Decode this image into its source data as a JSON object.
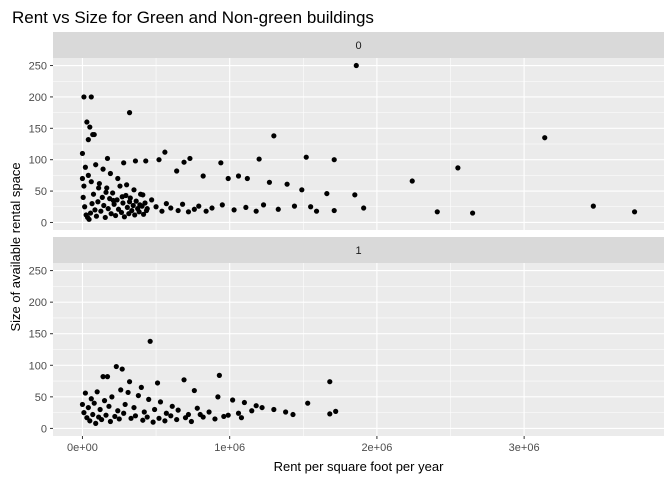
{
  "chart_data": {
    "type": "scatter",
    "title": "Rent vs Size for Green and Non-green buildings",
    "xlabel": "Rent per square foot per year",
    "ylabel": "Size of available rental space",
    "xlim": [
      -200000,
      3950000
    ],
    "ylim": [
      -12,
      262
    ],
    "x_ticks": [
      0,
      1000000,
      2000000,
      3000000
    ],
    "x_tick_labels": [
      "0e+00",
      "1e+06",
      "2e+06",
      "3e+06"
    ],
    "y_ticks": [
      0,
      50,
      100,
      150,
      200,
      250
    ],
    "y_tick_labels": [
      "0",
      "50",
      "100",
      "150",
      "200",
      "250"
    ],
    "grid": true,
    "legend": "none",
    "point_color": "#000000",
    "panel_background": "#ebebeb",
    "strip_background": "#d9d9d9",
    "facets": [
      {
        "label": "0",
        "points": [
          [
            1860000,
            250
          ],
          [
            10000,
            200
          ],
          [
            60000,
            200
          ],
          [
            320000,
            175
          ],
          [
            30000,
            160
          ],
          [
            50000,
            152
          ],
          [
            80000,
            140
          ],
          [
            40000,
            132
          ],
          [
            70000,
            140
          ],
          [
            3140000,
            135
          ],
          [
            1300000,
            138
          ],
          [
            0,
            110
          ],
          [
            560000,
            112
          ],
          [
            170000,
            102
          ],
          [
            430000,
            98
          ],
          [
            520000,
            100
          ],
          [
            690000,
            96
          ],
          [
            730000,
            102
          ],
          [
            940000,
            95
          ],
          [
            1200000,
            101
          ],
          [
            1520000,
            104
          ],
          [
            1710000,
            100
          ],
          [
            280000,
            95
          ],
          [
            360000,
            98
          ],
          [
            640000,
            82
          ],
          [
            820000,
            74
          ],
          [
            990000,
            70
          ],
          [
            1060000,
            74
          ],
          [
            1120000,
            70
          ],
          [
            1270000,
            64
          ],
          [
            1390000,
            61
          ],
          [
            1490000,
            52
          ],
          [
            1660000,
            46
          ],
          [
            2240000,
            66
          ],
          [
            2550000,
            87
          ],
          [
            1850000,
            44
          ],
          [
            1550000,
            25
          ],
          [
            1710000,
            19
          ],
          [
            1590000,
            18
          ],
          [
            1910000,
            23
          ],
          [
            2410000,
            17
          ],
          [
            2650000,
            15
          ],
          [
            3470000,
            26
          ],
          [
            3750000,
            17
          ],
          [
            1440000,
            26
          ],
          [
            1330000,
            21
          ],
          [
            1230000,
            28
          ],
          [
            1180000,
            18
          ],
          [
            1110000,
            24
          ],
          [
            1030000,
            20
          ],
          [
            950000,
            28
          ],
          [
            880000,
            23
          ],
          [
            840000,
            18
          ],
          [
            790000,
            26
          ],
          [
            760000,
            21
          ],
          [
            720000,
            17
          ],
          [
            680000,
            29
          ],
          [
            650000,
            19
          ],
          [
            600000,
            23
          ],
          [
            570000,
            30
          ],
          [
            540000,
            18
          ],
          [
            500000,
            25
          ],
          [
            470000,
            36
          ],
          [
            440000,
            22
          ],
          [
            410000,
            44
          ],
          [
            390000,
            28
          ],
          [
            350000,
            52
          ],
          [
            320000,
            33
          ],
          [
            300000,
            60
          ],
          [
            270000,
            41
          ],
          [
            240000,
            70
          ],
          [
            210000,
            35
          ],
          [
            190000,
            78
          ],
          [
            160000,
            48
          ],
          [
            140000,
            85
          ],
          [
            110000,
            55
          ],
          [
            90000,
            92
          ],
          [
            60000,
            65
          ],
          [
            40000,
            75
          ],
          [
            20000,
            88
          ],
          [
            10000,
            58
          ],
          [
            0,
            70
          ],
          [
            5000,
            40
          ],
          [
            15000,
            25
          ],
          [
            25000,
            12
          ],
          [
            35000,
            8
          ],
          [
            45000,
            5
          ],
          [
            55000,
            15
          ],
          [
            65000,
            30
          ],
          [
            75000,
            45
          ],
          [
            85000,
            20
          ],
          [
            95000,
            10
          ],
          [
            105000,
            33
          ],
          [
            115000,
            62
          ],
          [
            125000,
            18
          ],
          [
            135000,
            40
          ],
          [
            145000,
            27
          ],
          [
            155000,
            8
          ],
          [
            165000,
            55
          ],
          [
            175000,
            22
          ],
          [
            185000,
            38
          ],
          [
            195000,
            14
          ],
          [
            205000,
            47
          ],
          [
            215000,
            29
          ],
          [
            225000,
            11
          ],
          [
            235000,
            36
          ],
          [
            245000,
            21
          ],
          [
            255000,
            58
          ],
          [
            265000,
            16
          ],
          [
            275000,
            31
          ],
          [
            285000,
            9
          ],
          [
            295000,
            43
          ],
          [
            305000,
            24
          ],
          [
            315000,
            14
          ],
          [
            325000,
            39
          ],
          [
            335000,
            19
          ],
          [
            345000,
            27
          ],
          [
            355000,
            12
          ],
          [
            365000,
            34
          ],
          [
            375000,
            22
          ],
          [
            385000,
            17
          ],
          [
            395000,
            45
          ],
          [
            405000,
            26
          ],
          [
            415000,
            13
          ],
          [
            425000,
            31
          ],
          [
            435000,
            19
          ]
        ]
      },
      {
        "label": "1",
        "points": [
          [
            460000,
            138
          ],
          [
            230000,
            98
          ],
          [
            270000,
            94
          ],
          [
            930000,
            84
          ],
          [
            140000,
            82
          ],
          [
            170000,
            82
          ],
          [
            690000,
            77
          ],
          [
            1680000,
            74
          ],
          [
            320000,
            74
          ],
          [
            400000,
            65
          ],
          [
            510000,
            72
          ],
          [
            760000,
            60
          ],
          [
            920000,
            50
          ],
          [
            1020000,
            45
          ],
          [
            1100000,
            41
          ],
          [
            1180000,
            36
          ],
          [
            1300000,
            30
          ],
          [
            1380000,
            26
          ],
          [
            1430000,
            22
          ],
          [
            1530000,
            40
          ],
          [
            1680000,
            23
          ],
          [
            1720000,
            27
          ],
          [
            1220000,
            33
          ],
          [
            1150000,
            28
          ],
          [
            1060000,
            24
          ],
          [
            990000,
            21
          ],
          [
            860000,
            26
          ],
          [
            820000,
            18
          ],
          [
            780000,
            32
          ],
          [
            720000,
            22
          ],
          [
            650000,
            29
          ],
          [
            610000,
            35
          ],
          [
            570000,
            24
          ],
          [
            530000,
            42
          ],
          [
            490000,
            30
          ],
          [
            450000,
            46
          ],
          [
            420000,
            26
          ],
          [
            380000,
            52
          ],
          [
            350000,
            33
          ],
          [
            310000,
            57
          ],
          [
            290000,
            38
          ],
          [
            260000,
            61
          ],
          [
            240000,
            28
          ],
          [
            200000,
            50
          ],
          [
            180000,
            35
          ],
          [
            150000,
            44
          ],
          [
            120000,
            30
          ],
          [
            100000,
            58
          ],
          [
            80000,
            40
          ],
          [
            60000,
            47
          ],
          [
            40000,
            33
          ],
          [
            20000,
            56
          ],
          [
            10000,
            25
          ],
          [
            0,
            38
          ],
          [
            30000,
            17
          ],
          [
            50000,
            12
          ],
          [
            70000,
            22
          ],
          [
            90000,
            8
          ],
          [
            110000,
            18
          ],
          [
            130000,
            14
          ],
          [
            160000,
            21
          ],
          [
            190000,
            11
          ],
          [
            220000,
            19
          ],
          [
            250000,
            15
          ],
          [
            280000,
            24
          ],
          [
            330000,
            16
          ],
          [
            360000,
            20
          ],
          [
            410000,
            13
          ],
          [
            440000,
            18
          ],
          [
            480000,
            10
          ],
          [
            520000,
            16
          ],
          [
            560000,
            12
          ],
          [
            600000,
            20
          ],
          [
            640000,
            14
          ],
          [
            700000,
            17
          ],
          [
            740000,
            11
          ],
          [
            800000,
            22
          ],
          [
            900000,
            15
          ],
          [
            960000,
            19
          ],
          [
            1080000,
            17
          ]
        ]
      }
    ]
  }
}
